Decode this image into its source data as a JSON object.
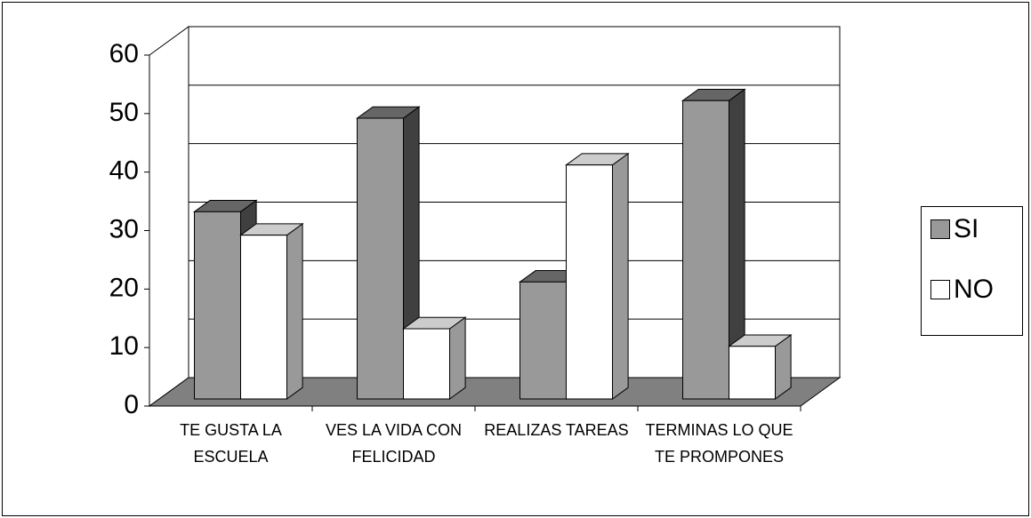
{
  "chart_data": {
    "type": "bar3d",
    "categories": [
      "TE GUSTA LA ESCUELA",
      "VES LA VIDA CON FELICIDAD",
      "REALIZAS TAREAS",
      "TERMINAS LO QUE TE PROMPONES"
    ],
    "series": [
      {
        "name": "SI",
        "color": "#999999",
        "top": "#666666",
        "side": "#404040",
        "values": [
          32,
          48,
          20,
          51
        ]
      },
      {
        "name": "NO",
        "color": "#ffffff",
        "top": "#cccccc",
        "side": "#999999",
        "values": [
          28,
          12,
          40,
          9
        ]
      }
    ],
    "ylim": [
      0,
      60
    ],
    "yticks": [
      0,
      10,
      20,
      30,
      40,
      50,
      60
    ],
    "grid": true,
    "legend": "right"
  }
}
